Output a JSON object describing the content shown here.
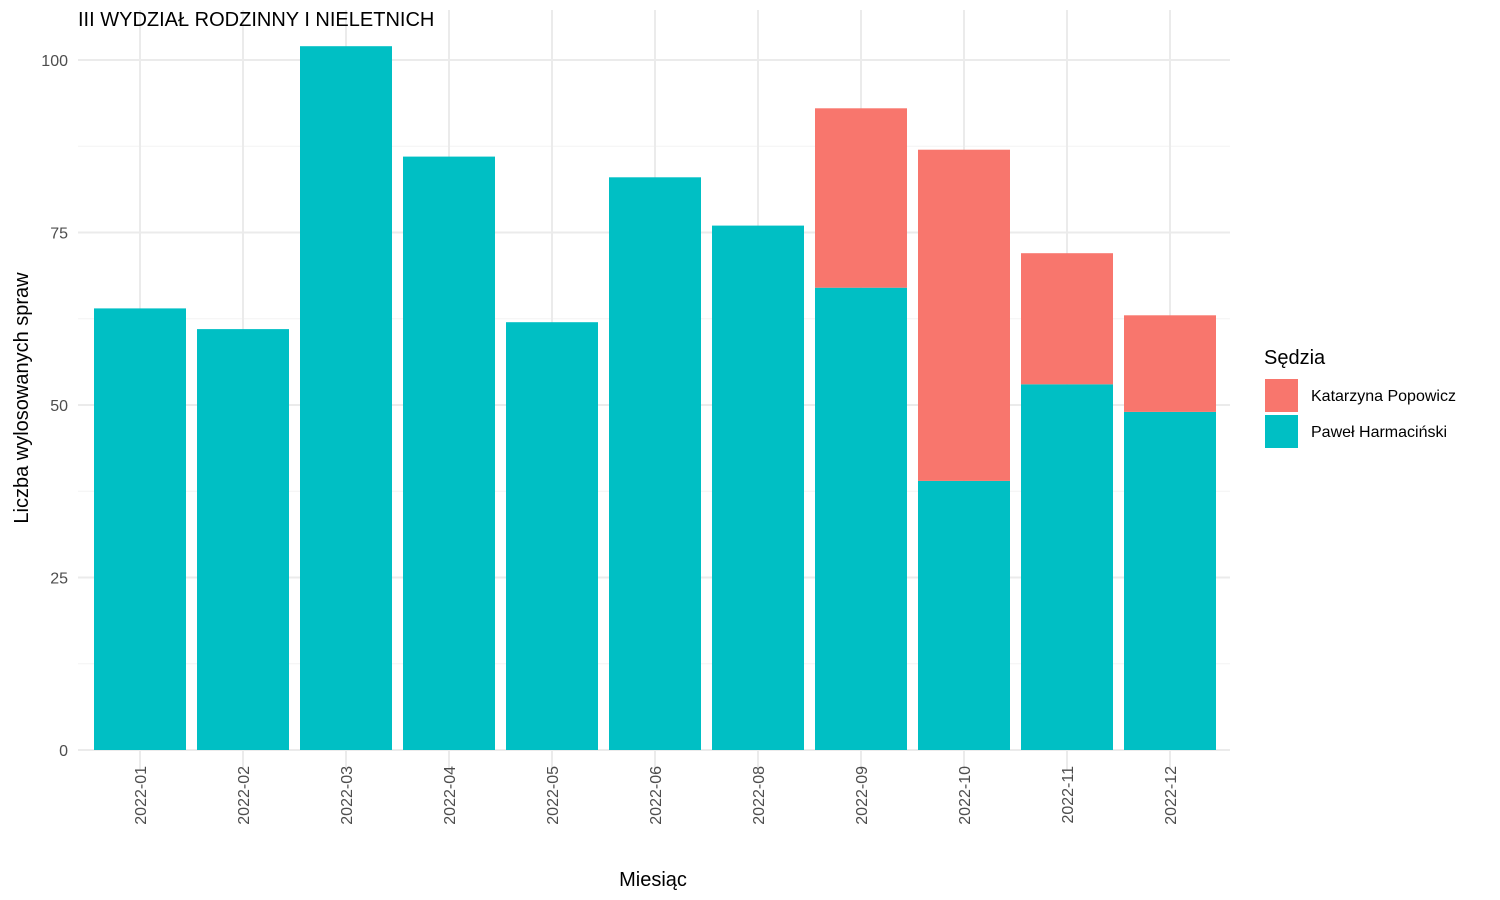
{
  "chart_data": {
    "type": "bar",
    "stacked": true,
    "title": "III WYDZIAŁ RODZINNY I NIELETNICH",
    "xlabel": "Miesiąc",
    "ylabel": "Liczba wylosowanych spraw",
    "categories": [
      "2022-01",
      "2022-02",
      "2022-03",
      "2022-04",
      "2022-05",
      "2022-06",
      "2022-08",
      "2022-09",
      "2022-10",
      "2022-11",
      "2022-12"
    ],
    "series": [
      {
        "name": "Paweł Harmaciński",
        "color": "#00BFC4",
        "values": [
          64,
          61,
          102,
          86,
          62,
          83,
          76,
          67,
          39,
          53,
          49
        ]
      },
      {
        "name": "Katarzyna Popowicz",
        "color": "#F8766D",
        "values": [
          0,
          0,
          0,
          0,
          0,
          0,
          0,
          26,
          48,
          19,
          14
        ]
      }
    ],
    "ylim": [
      0,
      107
    ],
    "yticks": [
      0,
      25,
      50,
      75,
      100
    ],
    "grid": true,
    "legend": {
      "title": "Sędzia",
      "position": "right",
      "order": [
        "Katarzyna Popowicz",
        "Paweł Harmaciński"
      ]
    }
  }
}
